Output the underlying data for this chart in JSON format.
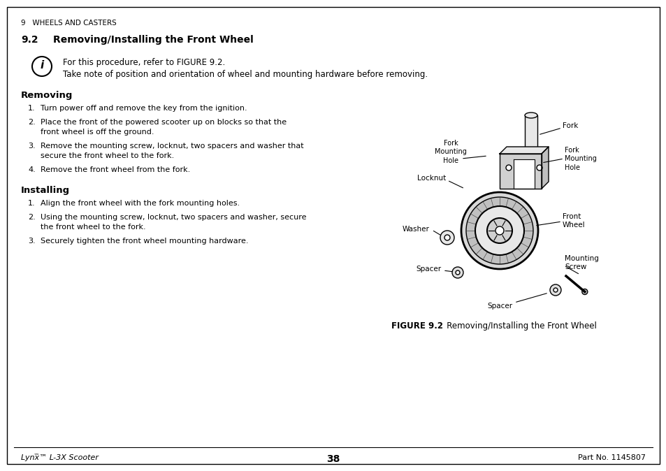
{
  "bg_color": "#ffffff",
  "page_width": 9.54,
  "page_height": 6.74,
  "header_section": "9   WHEELS AND CASTERS",
  "section_title": "9.2    Removing/Installing the Front Wheel",
  "note_line1": "For this procedure, refer to FIGURE 9.2.",
  "note_line2": "Take note of position and orientation of wheel and mounting hardware before removing.",
  "removing_title": "Removing",
  "removing_items": [
    "Turn power off and remove the key from the ignition.",
    "Place the front of the powered scooter up on blocks so that the\nfront wheel is off the ground.",
    "Remove the mounting screw, locknut, two spacers and washer that\nsecure the front wheel to the fork.",
    "Remove the front wheel from the fork."
  ],
  "installing_title": "Installing",
  "installing_items": [
    "Align the front wheel with the fork mounting holes.",
    "Using the mounting screw, locknut, two spacers and washer, secure\nthe front wheel to the fork.",
    "Securely tighten the front wheel mounting hardware."
  ],
  "figure_caption_bold": "FIGURE 9.2",
  "figure_caption_normal": "   Removing/Installing the Front Wheel",
  "footer_left": "Lynx™ L-3X Scooter",
  "footer_center": "38",
  "footer_right": "Part No. 1145807",
  "text_color": "#000000",
  "border_color": "#000000"
}
